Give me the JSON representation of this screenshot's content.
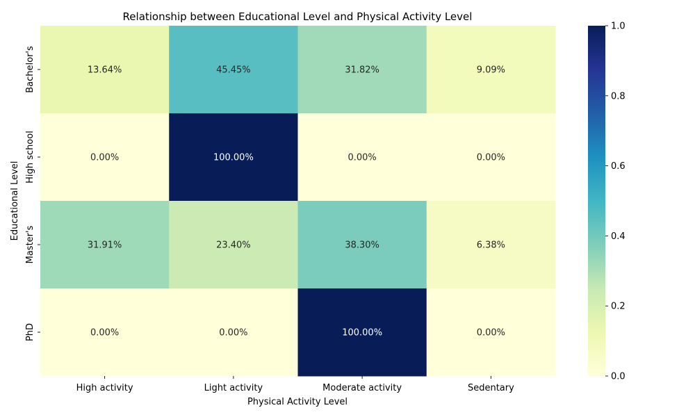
{
  "chart_data": {
    "type": "heatmap",
    "title": "Relationship between Educational Level and Physical Activity Level",
    "xlabel": "Physical Activity Level",
    "ylabel": "Educational Level",
    "x_categories": [
      "High activity",
      "Light activity",
      "Moderate activity",
      "Sedentary"
    ],
    "y_categories": [
      "Bachelor's",
      "High school",
      "Master's",
      "PhD"
    ],
    "values": [
      [
        0.1364,
        0.4545,
        0.3182,
        0.0909
      ],
      [
        0.0,
        1.0,
        0.0,
        0.0
      ],
      [
        0.3191,
        0.234,
        0.383,
        0.0638
      ],
      [
        0.0,
        0.0,
        1.0,
        0.0
      ]
    ],
    "annotations": [
      [
        "13.64%",
        "45.45%",
        "31.82%",
        "9.09%"
      ],
      [
        "0.00%",
        "100.00%",
        "0.00%",
        "0.00%"
      ],
      [
        "31.91%",
        "23.40%",
        "38.30%",
        "6.38%"
      ],
      [
        "0.00%",
        "0.00%",
        "100.00%",
        "0.00%"
      ]
    ],
    "colormap": "YlGnBu",
    "colorbar": {
      "range": [
        0,
        1
      ],
      "ticks": [
        0.0,
        0.2,
        0.4,
        0.6,
        0.8,
        1.0
      ],
      "tick_labels": [
        "0.0",
        "0.2",
        "0.4",
        "0.6",
        "0.8",
        "1.0"
      ]
    },
    "grid": false,
    "legend": "colorbar-right"
  }
}
